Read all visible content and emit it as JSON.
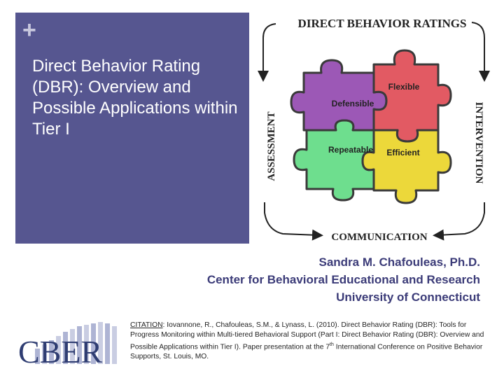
{
  "slide": {
    "plus_symbol": "+",
    "title": "Direct Behavior Rating (DBR): Overview and Possible Applications within Tier I",
    "title_bg": "#565690"
  },
  "figure": {
    "heading": "DIRECT BEHAVIOR RATINGS",
    "left_label": "ASSESSMENT",
    "right_label": "INTERVENTION",
    "bottom_label": "COMMUNICATION",
    "pieces": [
      {
        "label": "Defensible",
        "color": "#9c58b6"
      },
      {
        "label": "Flexible",
        "color": "#e25a63"
      },
      {
        "label": "Repeatable",
        "color": "#6ede8e"
      },
      {
        "label": "Efficient",
        "color": "#ecd83a"
      }
    ]
  },
  "presenter": {
    "name": "Sandra M. Chafouleas, Ph.D.",
    "center": "Center for Behavioral Educational and Research",
    "university": "University of Connecticut"
  },
  "logo": {
    "text": "CBER"
  },
  "citation": {
    "label": "CITATION",
    "text_a": ": Iovannone, R., Chafouleas, S.M., & Lynass, L. (2010). Direct Behavior Rating (DBR): Tools for Progress Monitoring within Multi-tiered Behavioral Support (Part I: Direct Behavior Rating (DBR): Overview and Possible Applications within Tier I). Paper presentation at the 7",
    "sup": "th",
    "text_b": " International Conference on Positive Behavior Supports, St. Louis, MO."
  }
}
